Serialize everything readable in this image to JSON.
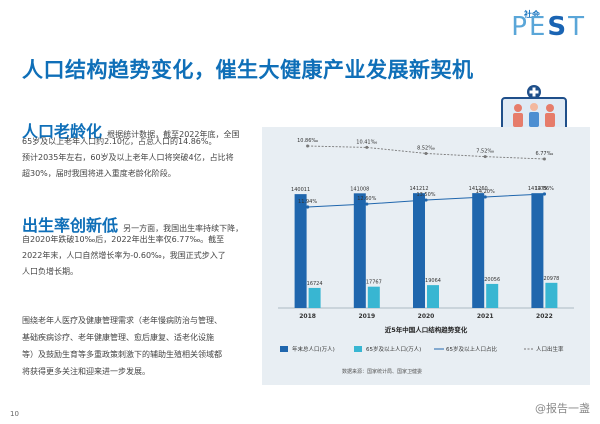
{
  "logo": {
    "small": "社会",
    "big_prefix": "PE",
    "big_s": "S",
    "big_suffix": "T"
  },
  "title": "人口结构趋势变化，催生大健康产业发展新契机",
  "aging": {
    "heading": "人口老龄化",
    "lead": "根据统计数据，截至2022年底，全国",
    "lines": [
      "65岁及以上老年人口约2.10亿，占总人口的14.86%。",
      "预计2035年左右，60岁及以上老年人口将突破4亿，占比将",
      "超30%，届时我国将进入重度老龄化阶段。"
    ]
  },
  "birth": {
    "heading": "出生率创新低",
    "lead": "另一方面，我国出生率持续下降，",
    "lines": [
      "自2020年跌破10‰后，2022年出生率仅6.77‰。截至",
      "2022年末，人口自然增长率为-0.60‰，我国正式步入了",
      "人口负增长期。"
    ]
  },
  "outlook": {
    "lines": [
      "围绕老年人医疗及健康管理需求（老年慢病防治与管理、",
      "基础疾病诊疗、老年健康管理、愈后康复、适老化设施",
      "等）及鼓励生育等多重政策刺激下的辅助生殖相关领域都",
      "将获得更多关注和迎来进一步发展。"
    ]
  },
  "chart_data": {
    "type": "bar",
    "title": "近5年中国人口结构趋势变化",
    "categories": [
      "2018",
      "2019",
      "2020",
      "2021",
      "2022"
    ],
    "series": [
      {
        "name": "年末总人口(万人)",
        "type": "bar",
        "values": [
          140011,
          141008,
          141212,
          141260,
          141175
        ],
        "labels": [
          "140011",
          "141008",
          "141212",
          "141260",
          "141175"
        ],
        "color": "#1f66ad"
      },
      {
        "name": "65岁及以上人口(万人)",
        "type": "bar",
        "values": [
          16724,
          17767,
          19064,
          20056,
          20978
        ],
        "labels": [
          "16724",
          "17767",
          "19064",
          "20056",
          "20978"
        ],
        "color": "#38b6d2"
      },
      {
        "name": "65岁及以上人口占比",
        "type": "line",
        "values": [
          11.94,
          12.6,
          13.5,
          14.2,
          14.86
        ],
        "labels": [
          "11.94%",
          "12.60%",
          "13.50%",
          "14.20%",
          "14.86%"
        ],
        "color": "#1f66ad"
      },
      {
        "name": "人口出生率",
        "type": "line",
        "values": [
          10.86,
          10.41,
          8.52,
          7.52,
          6.77
        ],
        "labels": [
          "10.86‰",
          "10.41‰",
          "8.52‰",
          "7.52‰",
          "6.77‰"
        ],
        "color": "#777777"
      }
    ],
    "source": "数据来源：国家统计局、国家卫健委",
    "legend_position": "bottom"
  },
  "footer": {
    "page": "10",
    "watermark": "@报告一盏"
  }
}
